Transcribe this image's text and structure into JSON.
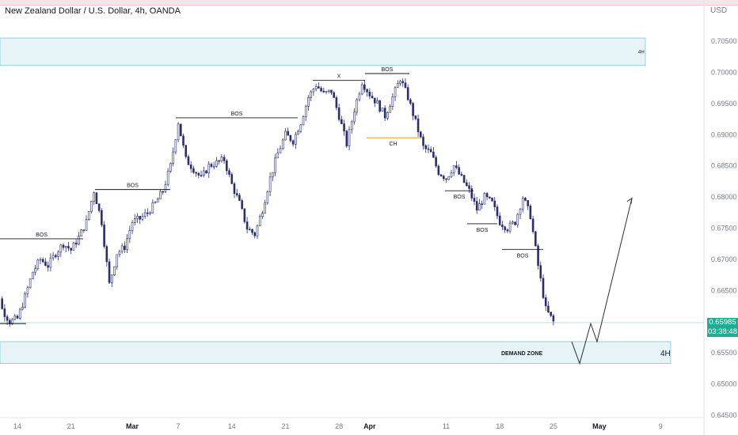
{
  "title": "New Zealand Dollar / U.S. Dollar, 4h, OANDA",
  "currency": "USD",
  "last_price": "0.65985",
  "countdown": "03:38:48",
  "colors": {
    "candle": "#2a2e6e",
    "zone_fill": "#e6f4f7",
    "zone_border": "#86c5cf",
    "ch_line": "#f6a21e",
    "last_price": "#22ab94",
    "projection": "#2a2e39"
  },
  "chart_data": {
    "type": "candlestick",
    "symbol": "NZDUSD",
    "timeframe": "4h",
    "x_tick_labels": [
      "14",
      "21",
      "Mar",
      "7",
      "14",
      "21",
      "28",
      "Apr",
      "11",
      "18",
      "25",
      "May",
      "9"
    ],
    "y_tick_labels": [
      "0.70500",
      "0.70000",
      "0.69500",
      "0.69000",
      "0.68500",
      "0.68000",
      "0.67500",
      "0.67000",
      "0.66500",
      "0.65500",
      "0.65000",
      "0.64500"
    ],
    "ylim": [
      0.6448,
      0.709
    ],
    "price_path": [
      [
        "Feb 10",
        0.672
      ],
      [
        "Feb 11",
        0.668
      ],
      [
        "Feb 12",
        0.662
      ],
      [
        "Feb 13",
        0.66
      ],
      [
        "Feb 14",
        0.6605
      ],
      [
        "Feb 15",
        0.664
      ],
      [
        "Feb 16",
        0.668
      ],
      [
        "Feb 17",
        0.67
      ],
      [
        "Feb 18",
        0.669
      ],
      [
        "Feb 19",
        0.671
      ],
      [
        "Feb 20",
        0.6725
      ],
      [
        "Feb 21",
        0.6715
      ],
      [
        "Feb 22",
        0.6735
      ],
      [
        "Feb 23",
        0.676
      ],
      [
        "Feb 24",
        0.681
      ],
      [
        "Feb 25",
        0.676
      ],
      [
        "Feb 26",
        0.666
      ],
      [
        "Feb 27",
        0.671
      ],
      [
        "Feb 28",
        0.672
      ],
      [
        "Mar 1",
        0.676
      ],
      [
        "Mar 2",
        0.6765
      ],
      [
        "Mar 3",
        0.6775
      ],
      [
        "Mar 4",
        0.679
      ],
      [
        "Mar 5",
        0.681
      ],
      [
        "Mar 6",
        0.685
      ],
      [
        "Mar 7",
        0.692
      ],
      [
        "Mar 8",
        0.686
      ],
      [
        "Mar 9",
        0.6845
      ],
      [
        "Mar 10",
        0.683
      ],
      [
        "Mar 11",
        0.685
      ],
      [
        "Mar 12",
        0.6855
      ],
      [
        "Mar 13",
        0.686
      ],
      [
        "Mar 14",
        0.682
      ],
      [
        "Mar 15",
        0.679
      ],
      [
        "Mar 16",
        0.675
      ],
      [
        "Mar 17",
        0.674
      ],
      [
        "Mar 18",
        0.678
      ],
      [
        "Mar 19",
        0.683
      ],
      [
        "Mar 20",
        0.687
      ],
      [
        "Mar 21",
        0.69
      ],
      [
        "Mar 22",
        0.689
      ],
      [
        "Mar 23",
        0.692
      ],
      [
        "Mar 24",
        0.696
      ],
      [
        "Mar 25",
        0.698
      ],
      [
        "Mar 26",
        0.6965
      ],
      [
        "Mar 27",
        0.697
      ],
      [
        "Mar 28",
        0.693
      ],
      [
        "Mar 29",
        0.6885
      ],
      [
        "Mar 30",
        0.694
      ],
      [
        "Mar 31",
        0.6985
      ],
      [
        "Apr 1",
        0.6965
      ],
      [
        "Apr 2",
        0.695
      ],
      [
        "Apr 3",
        0.693
      ],
      [
        "Apr 4",
        0.696
      ],
      [
        "Apr 5",
        0.699
      ],
      [
        "Apr 6",
        0.696
      ],
      [
        "Apr 7",
        0.692
      ],
      [
        "Apr 8",
        0.688
      ],
      [
        "Apr 9",
        0.687
      ],
      [
        "Apr 10",
        0.684
      ],
      [
        "Apr 11",
        0.683
      ],
      [
        "Apr 12",
        0.685
      ],
      [
        "Apr 13",
        0.683
      ],
      [
        "Apr 14",
        0.681
      ],
      [
        "Apr 15",
        0.678
      ],
      [
        "Apr 16",
        0.68
      ],
      [
        "Apr 17",
        0.679
      ],
      [
        "Apr 18",
        0.676
      ],
      [
        "Apr 19",
        0.675
      ],
      [
        "Apr 20",
        0.676
      ],
      [
        "Apr 21",
        0.68
      ],
      [
        "Apr 22",
        0.677
      ],
      [
        "Apr 23",
        0.669
      ],
      [
        "Apr 24",
        0.662
      ],
      [
        "Apr 25",
        0.66
      ]
    ],
    "zones": [
      {
        "name": "supply",
        "label": "4H",
        "top": 0.7055,
        "bottom": 0.7011
      },
      {
        "name": "demand",
        "label": "DEMAND ZONE",
        "tf_label": "4H",
        "top": 0.6568,
        "bottom": 0.6533
      }
    ],
    "annotations": [
      {
        "text": "BOS",
        "level": 0.6733
      },
      {
        "text": "BOS",
        "level": 0.6812
      },
      {
        "text": "BOS",
        "level": 0.6927
      },
      {
        "text": "X",
        "level": 0.6987
      },
      {
        "text": "BOS",
        "level": 0.6998
      },
      {
        "text": "CH",
        "level": 0.6895
      },
      {
        "text": "BOS",
        "level": 0.681
      },
      {
        "text": "BOS",
        "level": 0.6757
      },
      {
        "text": "BOS",
        "level": 0.6716
      }
    ],
    "projection": [
      [
        "Apr 26",
        0.6568
      ],
      [
        "Apr 27",
        0.6533
      ],
      [
        "Apr 28",
        0.6597
      ],
      [
        "Apr 29",
        0.6568
      ],
      [
        "May 4",
        0.6798
      ]
    ],
    "last_price": 0.65985
  }
}
